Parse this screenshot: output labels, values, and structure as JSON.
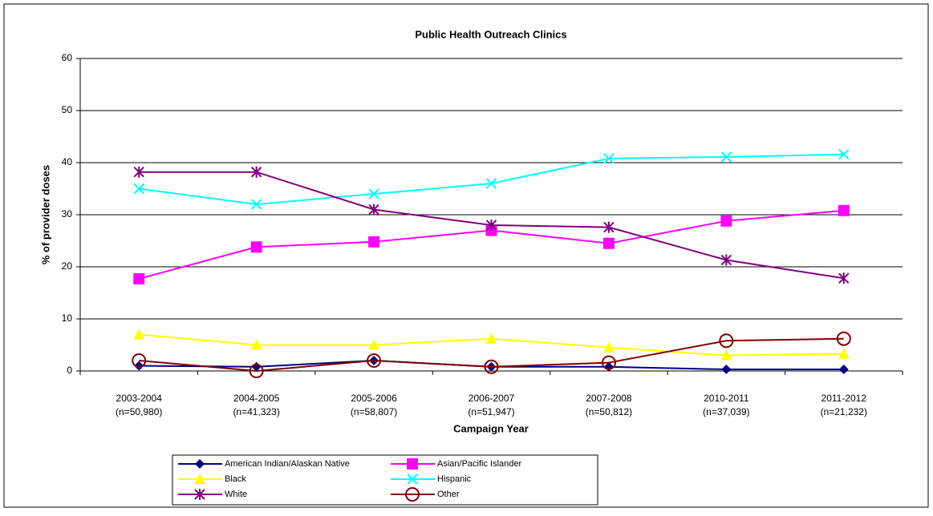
{
  "chart_data": {
    "type": "line",
    "title": "Public Health Outreach Clinics",
    "y_label": "% of provider doses",
    "x_label": "Campaign Year",
    "categories": [
      "2003-2004",
      "2004-2005",
      "2005-2006",
      "2006-2007",
      "2007-2008",
      "2010-2011",
      "2011-2012"
    ],
    "category_n": [
      "(n=50,980)",
      "(n=41,323)",
      "(n=58,807)",
      "(n=51,947)",
      "(n=50,812)",
      "(n=37,039)",
      "(n=21,232)"
    ],
    "ylim": [
      0,
      60
    ],
    "yticks": [
      0,
      10,
      20,
      30,
      40,
      50,
      60
    ],
    "grid": true,
    "legend": "bottom",
    "series": [
      {
        "name": "American Indian/Alaskan Native",
        "color": "#000080",
        "marker": "diamond",
        "values": [
          1,
          0.8,
          2,
          0.8,
          0.8,
          0.3,
          0.3
        ]
      },
      {
        "name": "Asian/Pacific Islander",
        "color": "#ff00ff",
        "marker": "square",
        "values": [
          17.7,
          23.8,
          24.8,
          27,
          24.5,
          28.8,
          30.8
        ]
      },
      {
        "name": "Black",
        "color": "#ffff00",
        "marker": "triangle",
        "values": [
          7,
          5,
          5,
          6.2,
          4.5,
          3,
          3.3
        ]
      },
      {
        "name": "Hispanic",
        "color": "#00ffff",
        "marker": "x",
        "values": [
          35,
          32,
          34,
          36,
          40.8,
          41.1,
          41.6
        ]
      },
      {
        "name": "White",
        "color": "#800080",
        "marker": "asterisk",
        "values": [
          38.2,
          38.2,
          31,
          28,
          27.6,
          21.3,
          17.8
        ]
      },
      {
        "name": "Other",
        "color": "#800000",
        "marker": "circle",
        "values": [
          2,
          0,
          2,
          0.8,
          1.6,
          5.8,
          6.2
        ]
      }
    ]
  }
}
